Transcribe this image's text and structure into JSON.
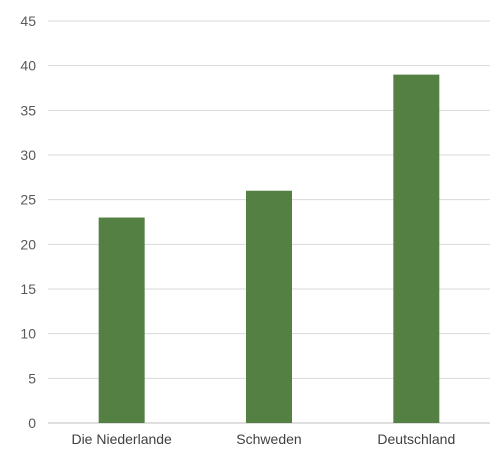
{
  "chart_data": {
    "type": "bar",
    "categories": [
      "Die Niederlande",
      "Schweden",
      "Deutschland"
    ],
    "values": [
      23,
      26,
      39
    ],
    "ylim": [
      0,
      45
    ],
    "yticks": [
      0,
      5,
      10,
      15,
      20,
      25,
      30,
      35,
      40,
      45
    ],
    "grid": true,
    "legend": "none",
    "bar_color": "#548143"
  }
}
